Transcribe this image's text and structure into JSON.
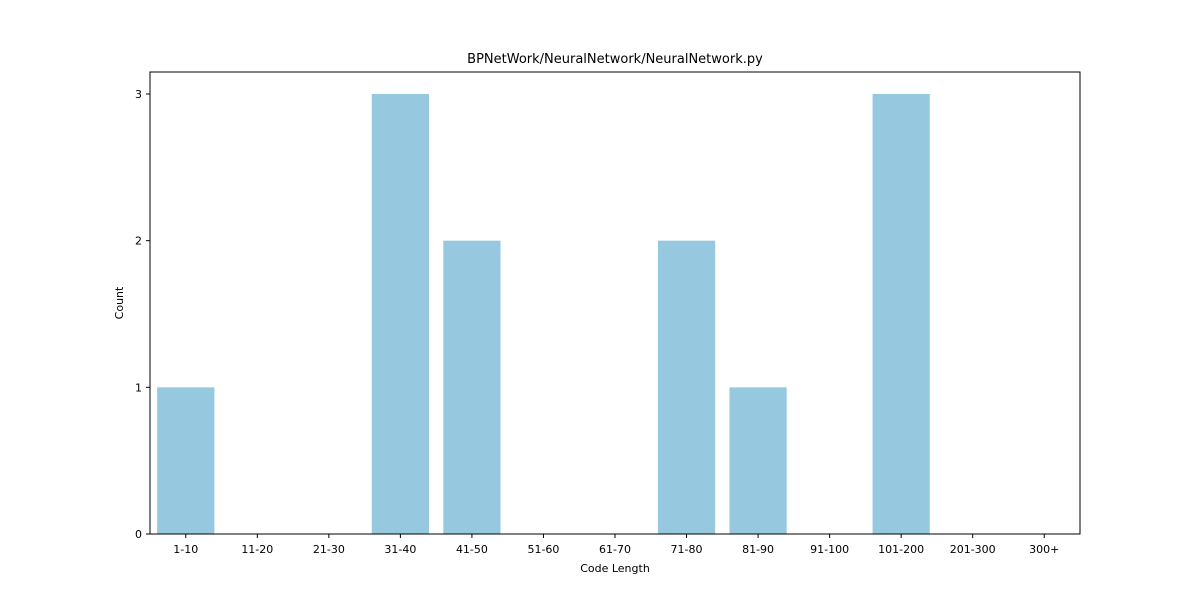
{
  "chart_data": {
    "type": "bar",
    "title": "BPNetWork/NeuralNetwork/NeuralNetwork.py",
    "xlabel": "Code Length",
    "ylabel": "Count",
    "categories": [
      "1-10",
      "11-20",
      "21-30",
      "31-40",
      "41-50",
      "51-60",
      "61-70",
      "71-80",
      "81-90",
      "91-100",
      "101-200",
      "201-300",
      "300+"
    ],
    "values": [
      1,
      0,
      0,
      3,
      2,
      0,
      0,
      2,
      1,
      0,
      3,
      0,
      0
    ],
    "y_ticks": [
      "0",
      "1",
      "2",
      "3"
    ],
    "ylim": [
      0,
      3.15
    ],
    "grid": false,
    "bar_color": "#96c9df"
  }
}
